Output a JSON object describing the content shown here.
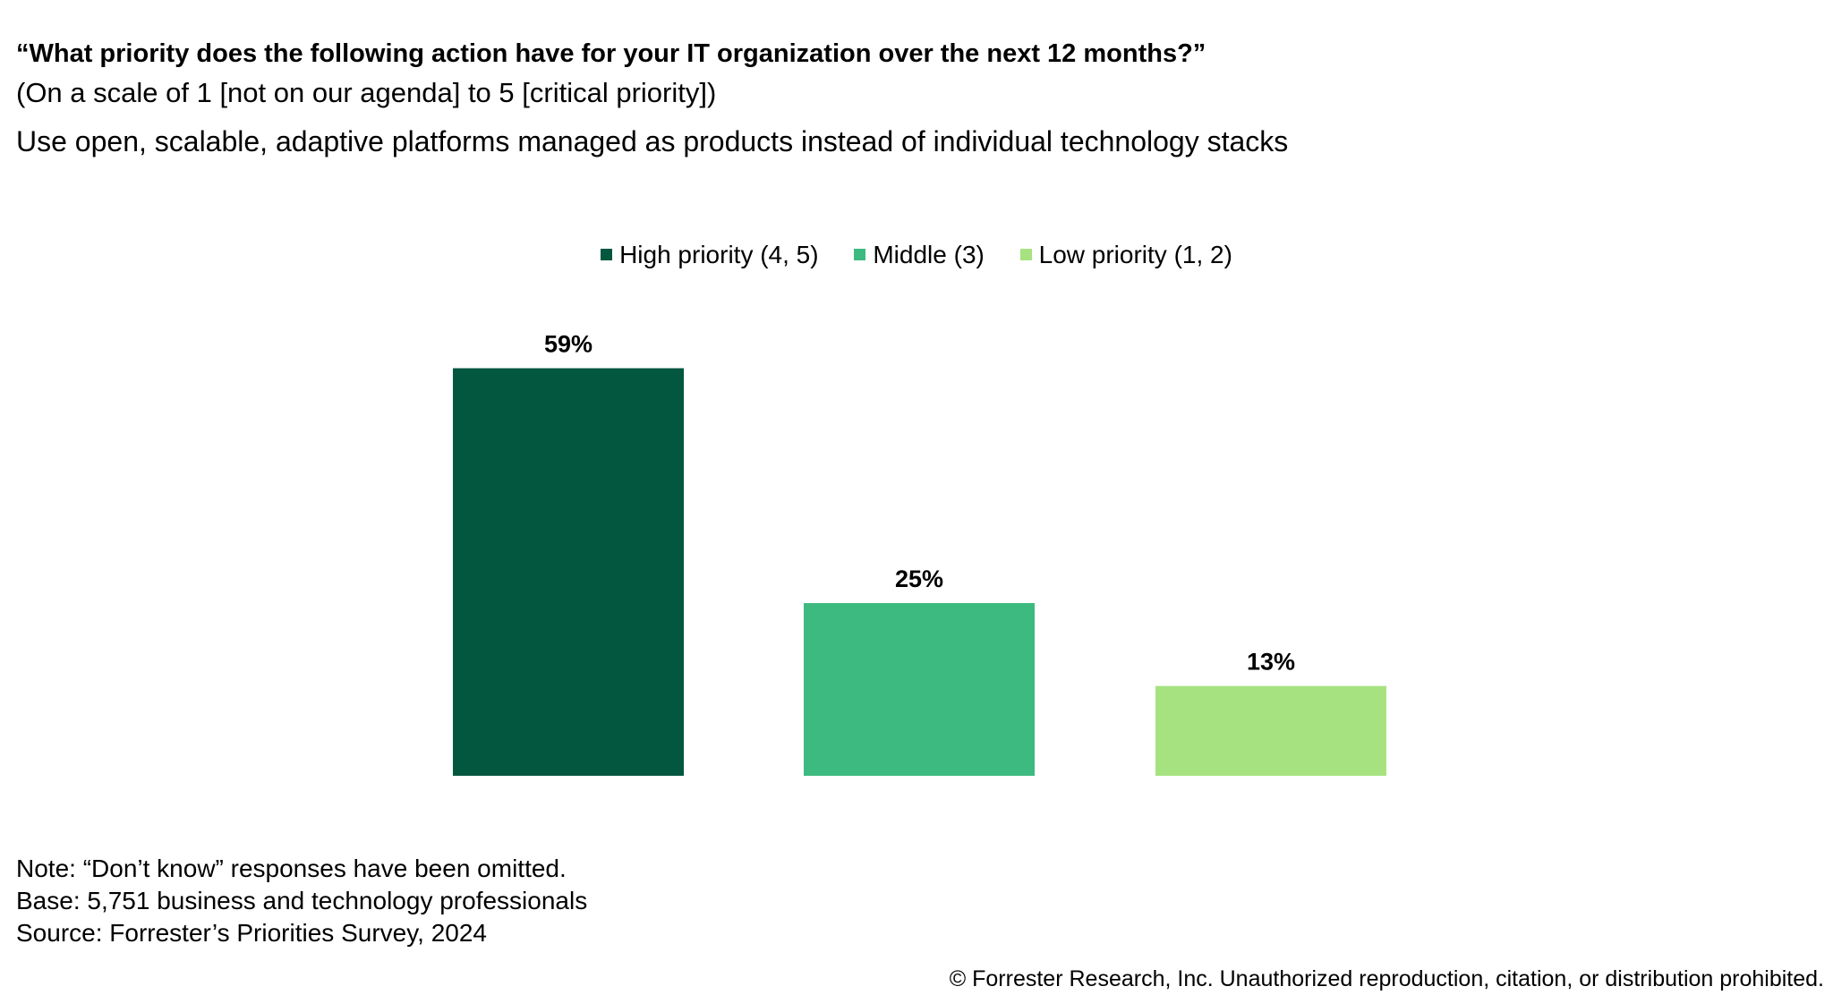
{
  "header": {
    "title": "“What priority does the following action have for your IT organization over the next 12 months?”",
    "scale": "(On a scale of 1 [not on our agenda] to 5 [critical priority])",
    "subtitle": "Use open, scalable, adaptive platforms managed as products instead of individual technology stacks"
  },
  "chart_data": {
    "type": "bar",
    "title": "",
    "xlabel": "",
    "ylabel": "",
    "categories": [
      "High priority (4, 5)",
      "Middle (3)",
      "Low priority (1, 2)"
    ],
    "values": [
      59,
      25,
      13
    ],
    "labels": [
      "59%",
      "25%",
      "13%"
    ],
    "colors": [
      "#03573f",
      "#3dba80",
      "#a6e380"
    ],
    "ylim": [
      0,
      100
    ],
    "grid": false,
    "legend": "top-center"
  },
  "footer": {
    "note": "Note: “Don’t know” responses have been omitted.",
    "base": "Base: 5,751 business and technology professionals",
    "source": "Source: Forrester’s Priorities Survey, 2024",
    "copyright": "© Forrester Research, Inc. Unauthorized reproduction, citation, or distribution prohibited."
  }
}
